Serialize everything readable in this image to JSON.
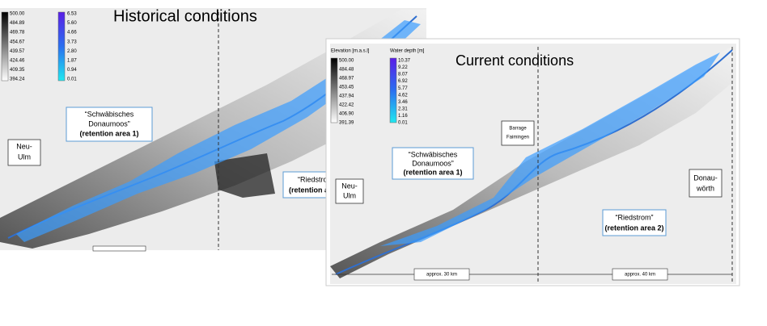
{
  "historical": {
    "title": "Historical conditions",
    "elevation_labels": [
      "500.00",
      "484.89",
      "469.78",
      "454.67",
      "439.57",
      "424.46",
      "409.35",
      "394.24"
    ],
    "depth_labels": [
      "6.53",
      "5.60",
      "4.66",
      "3.73",
      "2.80",
      "1.87",
      "0.94",
      "0.01"
    ],
    "area1": {
      "line1": "“Schwäbisches",
      "line2": "Donaumoos”",
      "line3": "(retention area 1)"
    },
    "neu_ulm": {
      "line1": "Neu-",
      "line2": "Ulm"
    },
    "area2": {
      "line1": "“Riedstrom",
      "line2": "(retention area"
    }
  },
  "current": {
    "title": "Current conditions",
    "elevation_title": "Elevation [m.a.s.l]",
    "depth_title": "Water depth [m]",
    "elevation_labels": [
      "500.00",
      "484.48",
      "468.97",
      "453.45",
      "437.94",
      "422.42",
      "406.90",
      "391.39"
    ],
    "depth_labels": [
      "10.37",
      "9.22",
      "8.07",
      "6.92",
      "5.77",
      "4.62",
      "3.46",
      "2.31",
      "1.16",
      "0.01"
    ],
    "barrage": {
      "line1": "Barrage",
      "line2": "Faimingen"
    },
    "area1": {
      "line1": "“Schwäbisches",
      "line2": "Donaumoos”",
      "line3": "(retention area 1)"
    },
    "neu_ulm": {
      "line1": "Neu-",
      "line2": "Ulm"
    },
    "donauwoerth": {
      "line1": "Donau-",
      "line2": "wörth"
    },
    "area2": {
      "line1": "“Riedstrom”",
      "line2": "(retention area 2)"
    },
    "scale1": "approx. 30 km",
    "scale2": "approx. 40 km"
  }
}
